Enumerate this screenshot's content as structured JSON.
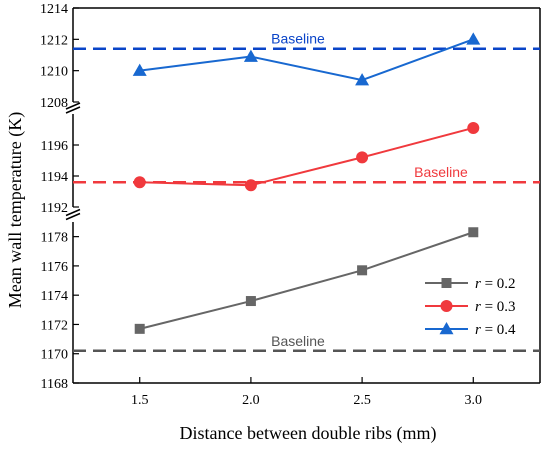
{
  "chart_data": {
    "type": "line",
    "xlabel": "Distance between double ribs (mm)",
    "ylabel": "Mean wall temperature (K)",
    "x": [
      1.5,
      2.0,
      2.5,
      3.0
    ],
    "x_tick_labels": [
      "1.5",
      "2.0",
      "2.5",
      "3.0"
    ],
    "xlim": [
      1.2,
      3.3
    ],
    "broken_y_axis": true,
    "y_segments": [
      {
        "range": [
          1168,
          1179
        ],
        "ticks": [
          1168,
          1170,
          1172,
          1174,
          1176,
          1178
        ]
      },
      {
        "range": [
          1192,
          1198
        ],
        "ticks": [
          1192,
          1194,
          1196
        ]
      },
      {
        "range": [
          1208,
          1214
        ],
        "ticks": [
          1208,
          1210,
          1212,
          1214
        ]
      }
    ],
    "series": [
      {
        "name_prefix": "r",
        "name_value": " = 0.2",
        "color": "#666666",
        "marker": "square",
        "values": [
          1171.7,
          1173.6,
          1175.7,
          1178.3
        ],
        "baseline": 1170.2,
        "baseline_label": "Baseline"
      },
      {
        "name_prefix": "r",
        "name_value": " = 0.3",
        "color": "#f0393d",
        "marker": "circle",
        "values": [
          1193.6,
          1193.4,
          1195.2,
          1197.1
        ],
        "baseline": 1193.6,
        "baseline_label": "Baseline"
      },
      {
        "name_prefix": "r",
        "name_value": " = 0.4",
        "color": "#1868d0",
        "marker": "triangle",
        "values": [
          1210.0,
          1210.9,
          1209.4,
          1212.0
        ],
        "baseline": 1211.4,
        "baseline_label": "Baseline"
      }
    ],
    "legend_position": "bottom-right",
    "grid": false
  },
  "colors": {
    "baseline_gray": "#555555",
    "baseline_red": "#f0393d",
    "baseline_blue": "#0a44c8"
  }
}
